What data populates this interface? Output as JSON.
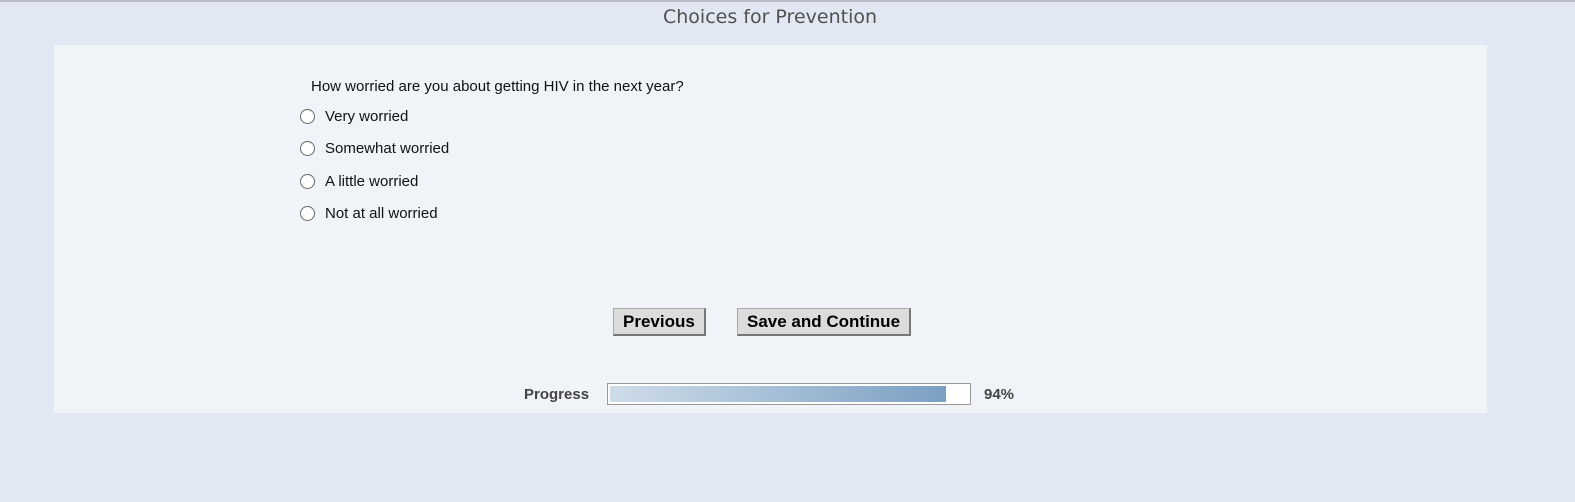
{
  "header": {
    "title": "Choices for Prevention"
  },
  "question": {
    "text": "How worried are you about getting HIV in the next year?",
    "options": [
      "Very worried",
      "Somewhat worried",
      "A little worried",
      "Not at all worried"
    ]
  },
  "buttons": {
    "previous": "Previous",
    "save_continue": "Save and Continue"
  },
  "progress": {
    "label": "Progress",
    "value": 94,
    "value_text": "94%"
  }
}
